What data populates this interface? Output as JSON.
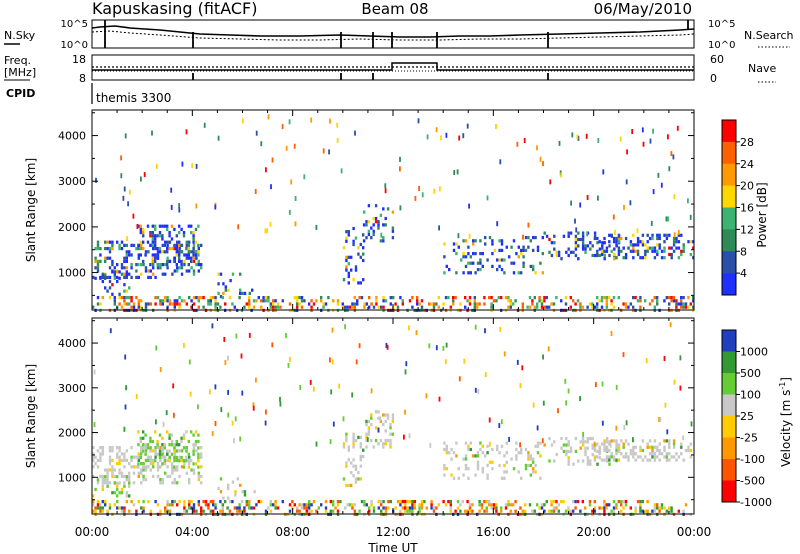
{
  "header": {
    "title": "Kapuskasing (fitACF)",
    "beam": "Beam 08",
    "date": "06/May/2010"
  },
  "noise_panel": {
    "left_label": "N.Sky",
    "right_label": "N.Search",
    "left_ticks": [
      "10^5",
      "10^0"
    ],
    "right_ticks": [
      "10^5",
      "10^0"
    ]
  },
  "freq_panel": {
    "left_label_1": "Freq.",
    "left_label_2": "[MHz]",
    "left_ticks": [
      "18",
      "8"
    ],
    "right_label": "Nave",
    "right_ticks": [
      "60",
      "0"
    ],
    "cpid_label": "CPID",
    "cpid_value": "themis 3300"
  },
  "colors": {
    "power": [
      "#1f2fff",
      "#2a4fa8",
      "#2e8b57",
      "#3cb371",
      "#ffd700",
      "#ff9a00",
      "#ff6000",
      "#ff0000"
    ],
    "velocity": [
      "#ff0000",
      "#ff5500",
      "#ff9900",
      "#ffcc00",
      "#c8c8c8",
      "#66cc33",
      "#339933",
      "#1f3fbf"
    ]
  },
  "chart_data": [
    {
      "type": "heatmap",
      "name": "power",
      "xlabel": "",
      "ylabel": "Slant Range [km]",
      "x_ticks": [
        "00:00",
        "04:00",
        "08:00",
        "12:00",
        "16:00",
        "20:00",
        "00:00"
      ],
      "xlim_hours": [
        0,
        24
      ],
      "y_ticks": [
        1000,
        2000,
        3000,
        4000
      ],
      "ylim": [
        180,
        4560
      ],
      "colorbar": {
        "label": "Power [dB]",
        "ticks": [
          "4",
          "8",
          "12",
          "16",
          "20",
          "24",
          "28"
        ],
        "range": [
          0,
          32
        ]
      },
      "patches": [
        {
          "t0": 0.0,
          "t1": 4.4,
          "r0": 900,
          "r1": 1700,
          "density": 0.55
        },
        {
          "t0": 1.8,
          "t1": 4.2,
          "r0": 1200,
          "r1": 2050,
          "density": 0.6
        },
        {
          "t0": 0.0,
          "t1": 1.5,
          "r0": 550,
          "r1": 1050,
          "density": 0.4
        },
        {
          "t0": 5.0,
          "t1": 6.5,
          "r0": 500,
          "r1": 1000,
          "density": 0.3
        },
        {
          "t0": 10.0,
          "t1": 10.8,
          "r0": 800,
          "r1": 2000,
          "density": 0.35
        },
        {
          "t0": 10.8,
          "t1": 12.0,
          "r0": 1700,
          "r1": 2500,
          "density": 0.4
        },
        {
          "t0": 14.0,
          "t1": 18.0,
          "r0": 1000,
          "r1": 1800,
          "density": 0.35
        },
        {
          "t0": 18.0,
          "t1": 21.0,
          "r0": 1300,
          "r1": 1900,
          "density": 0.4
        },
        {
          "t0": 20.0,
          "t1": 24.0,
          "r0": 1350,
          "r1": 1850,
          "density": 0.6
        }
      ]
    },
    {
      "type": "heatmap",
      "name": "velocity",
      "xlabel": "Time UT",
      "ylabel": "Slant Range [km]",
      "x_ticks": [
        "00:00",
        "04:00",
        "08:00",
        "12:00",
        "16:00",
        "20:00",
        "00:00"
      ],
      "xlim_hours": [
        0,
        24
      ],
      "y_ticks": [
        1000,
        2000,
        3000,
        4000
      ],
      "ylim": [
        180,
        4560
      ],
      "colorbar": {
        "label": "Velocity [m s",
        "label_sup": "-1",
        "label_end": "]",
        "ticks": [
          "1000",
          "500",
          "100",
          "25",
          "-25",
          "-100",
          "-500",
          "-1000"
        ]
      },
      "patches": [
        {
          "t0": 0.0,
          "t1": 4.4,
          "r0": 900,
          "r1": 1700,
          "density": 0.55
        },
        {
          "t0": 1.8,
          "t1": 4.2,
          "r0": 1200,
          "r1": 2050,
          "density": 0.6
        },
        {
          "t0": 0.0,
          "t1": 1.5,
          "r0": 550,
          "r1": 1050,
          "density": 0.4
        },
        {
          "t0": 5.0,
          "t1": 6.5,
          "r0": 500,
          "r1": 1000,
          "density": 0.3
        },
        {
          "t0": 10.0,
          "t1": 10.8,
          "r0": 800,
          "r1": 2000,
          "density": 0.35
        },
        {
          "t0": 10.8,
          "t1": 12.0,
          "r0": 1700,
          "r1": 2500,
          "density": 0.4
        },
        {
          "t0": 14.0,
          "t1": 18.0,
          "r0": 1000,
          "r1": 1800,
          "density": 0.35
        },
        {
          "t0": 18.0,
          "t1": 21.0,
          "r0": 1300,
          "r1": 1900,
          "density": 0.4
        },
        {
          "t0": 20.0,
          "t1": 24.0,
          "r0": 1350,
          "r1": 1850,
          "density": 0.6
        }
      ]
    }
  ]
}
